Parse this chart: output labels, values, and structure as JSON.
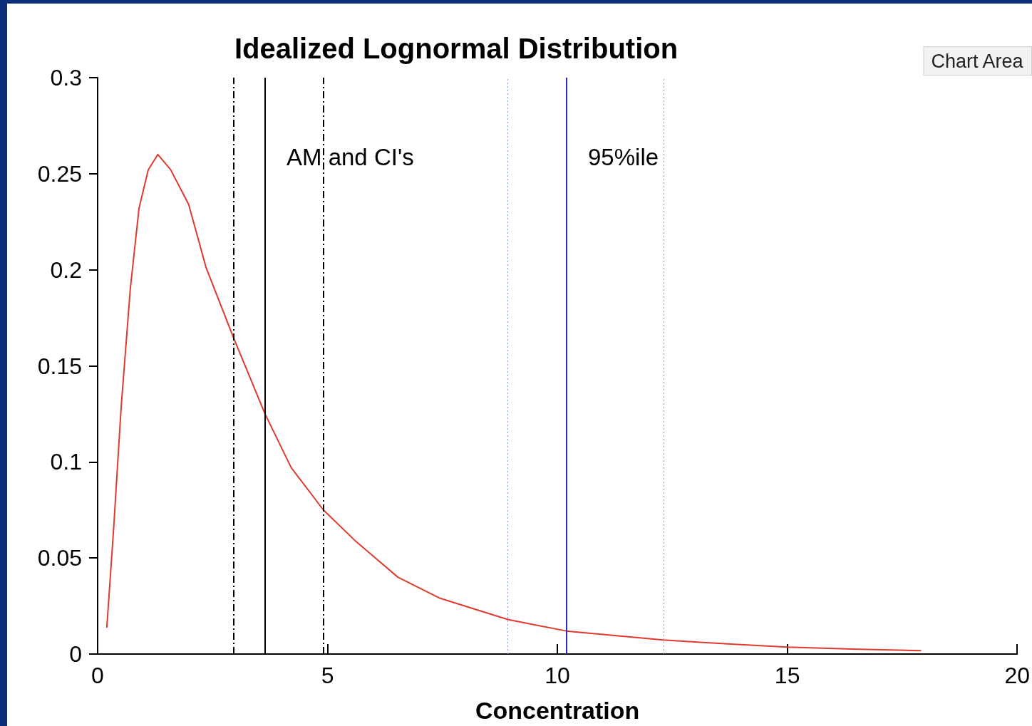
{
  "chart_data": {
    "type": "line",
    "title": "Idealized Lognormal Distribution",
    "xlabel": "Concentration",
    "series": [
      {
        "color": "#e03a2f",
        "x": [
          0.2,
          0.35,
          0.51,
          0.71,
          0.9,
          1.1,
          1.31,
          1.59,
          1.98,
          2.36,
          2.95,
          3.64,
          4.21,
          4.91,
          5.6,
          6.53,
          7.45,
          8.92,
          10.19,
          11.16,
          12.3,
          13.3,
          15.0,
          16.4,
          17.9
        ],
        "values": [
          0.014,
          0.066,
          0.128,
          0.19,
          0.232,
          0.252,
          0.26,
          0.252,
          0.234,
          0.201,
          0.165,
          0.125,
          0.097,
          0.075,
          0.059,
          0.04,
          0.029,
          0.018,
          0.012,
          0.0098,
          0.0073,
          0.0058,
          0.0036,
          0.0026,
          0.0018
        ]
      }
    ],
    "xlim": [
      0,
      20
    ],
    "xticks": [
      0,
      5,
      10,
      15,
      20
    ],
    "ylim": [
      0,
      0.3
    ],
    "yticks": [
      0,
      0.05,
      0.1,
      0.15,
      0.2,
      0.25,
      0.3
    ],
    "ref_lines": [
      {
        "axis": "x",
        "value": 2.95,
        "color": "#000000",
        "line_style": "dashed"
      },
      {
        "axis": "x",
        "value": 3.64,
        "color": "#000000",
        "line_style": "solid"
      },
      {
        "axis": "x",
        "value": 4.91,
        "color": "#000000",
        "line_style": "dashed"
      },
      {
        "axis": "x",
        "value": 8.92,
        "color": "#7a9be0",
        "line_style": "dotted"
      },
      {
        "axis": "x",
        "value": 10.19,
        "color": "#2a2ac8",
        "line_style": "solid"
      },
      {
        "axis": "x",
        "value": 12.31,
        "color": "#7a9be0",
        "line_style": "dotted"
      }
    ],
    "annotations": [
      "AM and CI's",
      "95%ile",
      "Chart Area"
    ],
    "grid": false,
    "marker": "none",
    "line_style": "solid"
  }
}
